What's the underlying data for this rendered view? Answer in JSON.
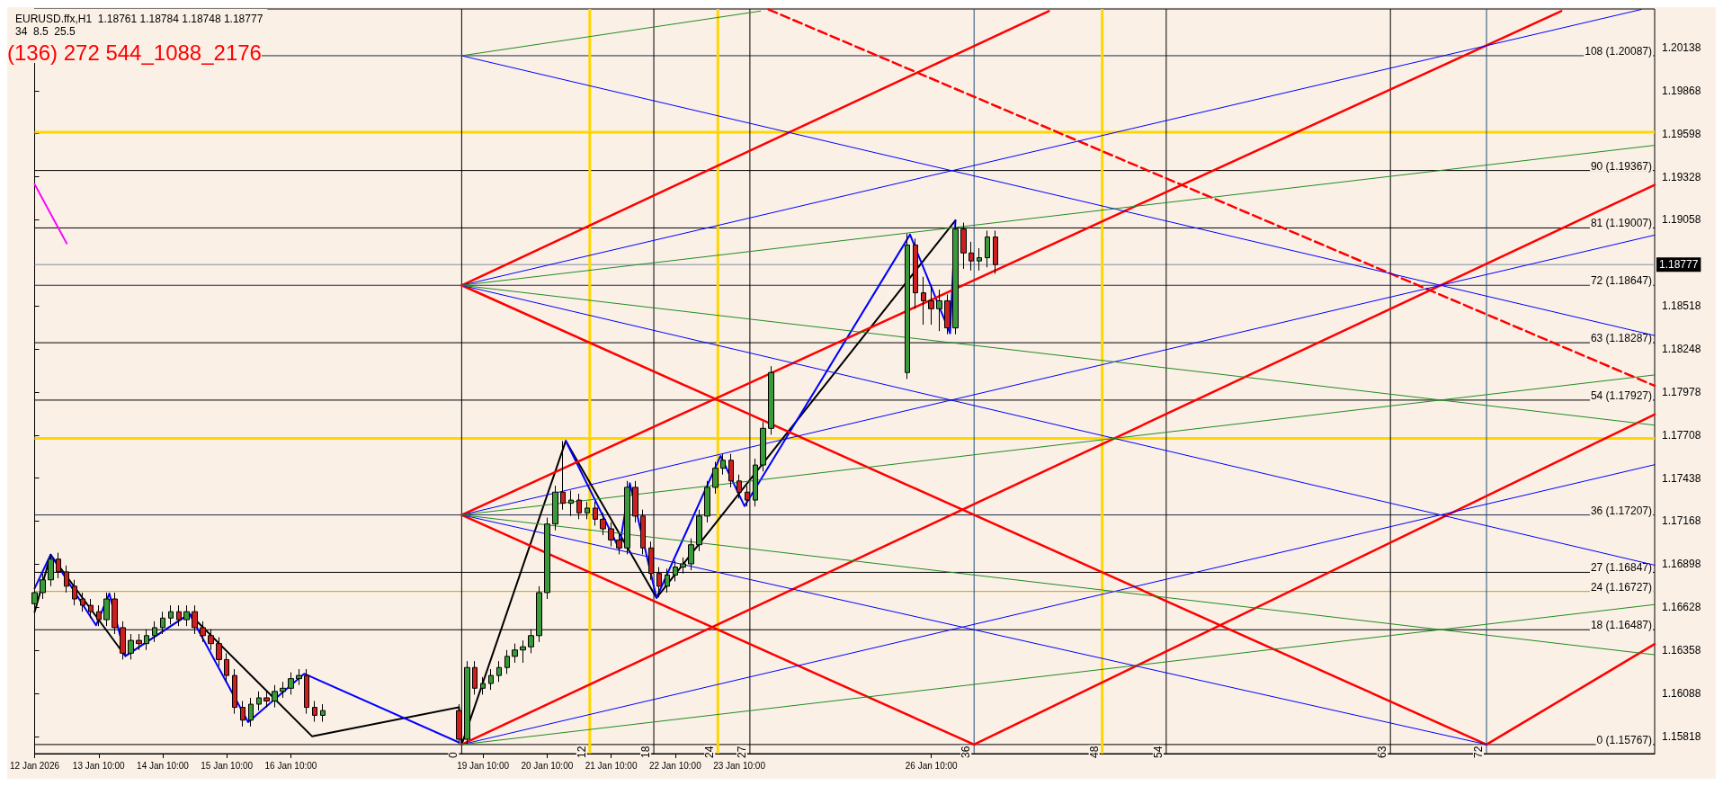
{
  "chart_data": {
    "type": "candlestick",
    "title": "EURUSD.ffx,H1  1.18761 1.18784 1.18748 1.18777",
    "subtitle": "34  8.5  25.5",
    "annotations": [
      "(136) 272 544_1088_2176"
    ],
    "x": [
      "2026-01-12T10:00",
      "2026-01-12T13:00",
      "2026-01-12T16:00",
      "2026-01-12T19:00",
      "2026-01-12T22:00",
      "2026-01-13T01:00",
      "2026-01-13T04:00",
      "2026-01-13T07:00",
      "2026-01-13T10:00",
      "2026-01-13T13:00",
      "2026-01-13T16:00",
      "2026-01-13T19:00",
      "2026-01-13T22:00",
      "2026-01-14T01:00",
      "2026-01-14T04:00",
      "2026-01-14T07:00",
      "2026-01-14T10:00",
      "2026-01-14T13:00",
      "2026-01-14T16:00",
      "2026-01-14T19:00",
      "2026-01-14T22:00",
      "2026-01-15T01:00",
      "2026-01-15T04:00",
      "2026-01-15T07:00",
      "2026-01-15T10:00",
      "2026-01-15T13:00",
      "2026-01-15T16:00",
      "2026-01-15T19:00",
      "2026-01-15T22:00",
      "2026-01-16T01:00",
      "2026-01-16T04:00",
      "2026-01-16T07:00",
      "2026-01-16T10:00",
      "2026-01-16T13:00",
      "2026-01-16T16:00",
      "2026-01-16T19:00",
      "2026-01-16T22:00",
      "2026-01-19T01:00",
      "2026-01-19T04:00",
      "2026-01-19T07:00",
      "2026-01-19T10:00",
      "2026-01-19T13:00",
      "2026-01-19T16:00",
      "2026-01-19T19:00",
      "2026-01-19T22:00",
      "2026-01-20T01:00",
      "2026-01-20T04:00",
      "2026-01-20T07:00",
      "2026-01-20T10:00",
      "2026-01-20T13:00",
      "2026-01-20T16:00",
      "2026-01-20T19:00",
      "2026-01-20T22:00",
      "2026-01-21T01:00",
      "2026-01-21T04:00",
      "2026-01-21T07:00",
      "2026-01-21T10:00",
      "2026-01-21T13:00",
      "2026-01-21T16:00",
      "2026-01-21T19:00",
      "2026-01-21T22:00",
      "2026-01-22T01:00",
      "2026-01-22T04:00",
      "2026-01-22T07:00",
      "2026-01-22T10:00",
      "2026-01-22T13:00",
      "2026-01-22T16:00",
      "2026-01-22T19:00",
      "2026-01-22T22:00",
      "2026-01-23T01:00",
      "2026-01-23T04:00",
      "2026-01-23T07:00",
      "2026-01-23T10:00",
      "2026-01-23T13:00",
      "2026-01-23T16:00",
      "2026-01-23T19:00",
      "2026-01-23T22:00",
      "2026-01-26T01:00",
      "2026-01-26T04:00",
      "2026-01-26T07:00",
      "2026-01-26T10:00",
      "2026-01-26T13:00",
      "2026-01-26T16:00",
      "2026-01-26T19:00",
      "2026-01-26T22:00",
      "2026-01-27T01:00",
      "2026-01-27T04:00",
      "2026-01-27T07:00",
      "2026-01-27T10:00"
    ],
    "ohlc": [
      [
        1.1665,
        1.1676,
        1.1661,
        1.1672
      ],
      [
        1.1672,
        1.1684,
        1.1668,
        1.168
      ],
      [
        1.168,
        1.1696,
        1.1676,
        1.1693
      ],
      [
        1.1693,
        1.1697,
        1.1681,
        1.1685
      ],
      [
        1.1685,
        1.1689,
        1.1672,
        1.1676
      ],
      [
        1.1676,
        1.168,
        1.1664,
        1.1668
      ],
      [
        1.1668,
        1.1672,
        1.166,
        1.1664
      ],
      [
        1.1664,
        1.1668,
        1.1656,
        1.166
      ],
      [
        1.166,
        1.1664,
        1.1651,
        1.1655
      ],
      [
        1.1655,
        1.1672,
        1.1651,
        1.1668
      ],
      [
        1.1668,
        1.1672,
        1.1646,
        1.165
      ],
      [
        1.165,
        1.1654,
        1.163,
        1.1634
      ],
      [
        1.1634,
        1.1646,
        1.163,
        1.1642
      ],
      [
        1.1642,
        1.1646,
        1.1636,
        1.164
      ],
      [
        1.164,
        1.1649,
        1.1636,
        1.1645
      ],
      [
        1.1645,
        1.1654,
        1.1641,
        1.165
      ],
      [
        1.165,
        1.166,
        1.1646,
        1.1656
      ],
      [
        1.1656,
        1.1664,
        1.1652,
        1.166
      ],
      [
        1.166,
        1.1664,
        1.1651,
        1.1655
      ],
      [
        1.1655,
        1.1664,
        1.1651,
        1.166
      ],
      [
        1.166,
        1.1664,
        1.1646,
        1.165
      ],
      [
        1.165,
        1.1654,
        1.1641,
        1.1645
      ],
      [
        1.1645,
        1.1649,
        1.1636,
        1.164
      ],
      [
        1.164,
        1.1644,
        1.1626,
        1.163
      ],
      [
        1.163,
        1.1634,
        1.1616,
        1.162
      ],
      [
        1.162,
        1.1624,
        1.1596,
        1.16
      ],
      [
        1.16,
        1.1604,
        1.1588,
        1.1592
      ],
      [
        1.1592,
        1.1606,
        1.1588,
        1.1602
      ],
      [
        1.1602,
        1.161,
        1.1598,
        1.1606
      ],
      [
        1.1606,
        1.161,
        1.16,
        1.1604
      ],
      [
        1.1604,
        1.1614,
        1.16,
        1.161
      ],
      [
        1.161,
        1.1616,
        1.1606,
        1.1612
      ],
      [
        1.1612,
        1.1622,
        1.1608,
        1.1618
      ],
      [
        1.1618,
        1.1624,
        1.1614,
        1.162
      ],
      [
        1.162,
        1.1624,
        1.1596,
        1.16
      ],
      [
        1.16,
        1.1604,
        1.1591,
        1.1595
      ],
      [
        1.1595,
        1.1602,
        1.1591,
        1.1598
      ],
      [
        1.1598,
        1.1602,
        1.1577,
        1.158
      ],
      [
        1.158,
        1.1629,
        1.1577,
        1.1625
      ],
      [
        1.1625,
        1.1629,
        1.1608,
        1.1612
      ],
      [
        1.1612,
        1.1619,
        1.1608,
        1.1615
      ],
      [
        1.1615,
        1.1624,
        1.1611,
        1.162
      ],
      [
        1.162,
        1.1629,
        1.1616,
        1.1625
      ],
      [
        1.1625,
        1.1636,
        1.1621,
        1.1632
      ],
      [
        1.1632,
        1.164,
        1.1628,
        1.1636
      ],
      [
        1.1636,
        1.1642,
        1.1628,
        1.1638
      ],
      [
        1.1638,
        1.1649,
        1.1634,
        1.1645
      ],
      [
        1.1645,
        1.1676,
        1.1641,
        1.1672
      ],
      [
        1.1672,
        1.1719,
        1.1668,
        1.1715
      ],
      [
        1.1715,
        1.1739,
        1.1711,
        1.1735
      ],
      [
        1.1735,
        1.1767,
        1.1724,
        1.1728
      ],
      [
        1.1728,
        1.1736,
        1.172,
        1.173
      ],
      [
        1.173,
        1.1734,
        1.1718,
        1.1722
      ],
      [
        1.1722,
        1.1729,
        1.1718,
        1.1725
      ],
      [
        1.1725,
        1.1729,
        1.1714,
        1.1718
      ],
      [
        1.1718,
        1.1722,
        1.1708,
        1.1712
      ],
      [
        1.1712,
        1.1716,
        1.1701,
        1.1705
      ],
      [
        1.1705,
        1.1709,
        1.1696,
        1.17
      ],
      [
        1.17,
        1.1742,
        1.1696,
        1.1738
      ],
      [
        1.1738,
        1.1742,
        1.1716,
        1.172
      ],
      [
        1.172,
        1.1724,
        1.1696,
        1.17
      ],
      [
        1.17,
        1.1704,
        1.168,
        1.1684
      ],
      [
        1.1684,
        1.1688,
        1.1669,
        1.1676
      ],
      [
        1.1676,
        1.1687,
        1.1672,
        1.1683
      ],
      [
        1.1683,
        1.1692,
        1.1679,
        1.1688
      ],
      [
        1.1688,
        1.1694,
        1.1684,
        1.169
      ],
      [
        1.169,
        1.1706,
        1.1686,
        1.1702
      ],
      [
        1.1702,
        1.1724,
        1.1698,
        1.172
      ],
      [
        1.172,
        1.1742,
        1.1716,
        1.1738
      ],
      [
        1.1738,
        1.1754,
        1.1734,
        1.175
      ],
      [
        1.175,
        1.1759,
        1.1746,
        1.1755
      ],
      [
        1.1755,
        1.1759,
        1.1738,
        1.1742
      ],
      [
        1.1742,
        1.1746,
        1.1731,
        1.1735
      ],
      [
        1.1735,
        1.1739,
        1.1726,
        1.173
      ],
      [
        1.173,
        1.1756,
        1.1726,
        1.1752
      ],
      [
        1.1752,
        1.1779,
        1.1748,
        1.1775
      ],
      [
        1.1775,
        1.1814,
        1.1771,
        1.181
      ],
      [
        1.181,
        1.1897,
        1.1806,
        1.189
      ],
      [
        1.189,
        1.1894,
        1.185,
        1.186
      ],
      [
        1.186,
        1.187,
        1.184,
        1.1855
      ],
      [
        1.1855,
        1.1865,
        1.184,
        1.185
      ],
      [
        1.185,
        1.1862,
        1.1836,
        1.1855
      ],
      [
        1.1855,
        1.1859,
        1.1834,
        1.1838
      ],
      [
        1.1838,
        1.1905,
        1.1834,
        1.19
      ],
      [
        1.19,
        1.1904,
        1.1875,
        1.1885
      ],
      [
        1.1885,
        1.1892,
        1.1874,
        1.188
      ],
      [
        1.188,
        1.1888,
        1.1874,
        1.1882
      ],
      [
        1.1882,
        1.1899,
        1.1876,
        1.1895
      ],
      [
        1.1895,
        1.1899,
        1.1872,
        1.18777
      ]
    ],
    "series": [
      {
        "type": "line",
        "color": "#ff00ff",
        "x": [
          "2026-01-12T10:00",
          "2026-01-12T22:00"
        ],
        "values": [
          1.19281,
          1.1891
        ]
      },
      {
        "type": "line",
        "color": "#000000",
        "x": [
          "2026-01-12T10:00",
          "2026-01-12T16:00",
          "2026-01-13T20:00",
          "2026-01-14T20:00",
          "2026-01-16T18:00",
          "2026-01-19T01:00",
          "2026-01-19T02:00",
          "2026-01-20T17:00",
          "2026-01-22T03:00",
          "2026-01-26T19:00"
        ],
        "values": [
          1.16598,
          1.16958,
          1.16322,
          1.16587,
          1.15818,
          1.16001,
          1.15767,
          1.17671,
          1.16687,
          1.19054
        ]
      },
      {
        "type": "line",
        "color": "#0000ff",
        "x": [
          "2026-01-12T10:00",
          "2026-01-12T16:00",
          "2026-01-13T09:00",
          "2026-01-13T14:00",
          "2026-01-13T20:00",
          "2026-01-14T20:00",
          "2026-01-15T18:00",
          "2026-01-16T15:00",
          "2026-01-19T01:00",
          "2026-01-19T20:00",
          "2026-01-20T17:00",
          "2026-01-21T13:00",
          "2026-01-21T17:00",
          "2026-01-22T03:00",
          "2026-01-23T03:00",
          "2026-01-23T12:00",
          "2026-01-26T02:00",
          "2026-01-26T17:00",
          "2026-01-26T19:00"
        ],
        "values": [
          1.16747,
          1.16958,
          1.16515,
          1.16714,
          1.16322,
          1.16587,
          1.15907,
          1.16211,
          1.1578,
          null,
          1.17671,
          1.16996,
          1.17406,
          1.16687,
          1.17577,
          1.17262,
          1.18965,
          1.18346,
          1.19054
        ]
      },
      {
        "type": "line",
        "color": "#ff0000",
        "x": [
          "2026-01-19T02:00",
          "2026-01-28T06:00"
        ],
        "values": [
          1.18647,
          1.20367
        ]
      },
      {
        "type": "line",
        "color": "#ff0000",
        "x": [
          "2026-01-19T02:00",
          "2026-02-04T02:00"
        ],
        "values": [
          1.18647,
          1.15767
        ]
      },
      {
        "type": "line",
        "color": "#ff0000",
        "x": [
          "2026-01-19T02:00",
          "2026-02-05T06:00"
        ],
        "values": [
          1.17207,
          1.20367
        ]
      },
      {
        "type": "line",
        "color": "#ff0000",
        "x": [
          "2026-01-19T02:00",
          "2026-01-27T02:00"
        ],
        "values": [
          1.17207,
          1.15767
        ]
      },
      {
        "type": "line",
        "color": "#ff0000",
        "x": [
          "2026-01-19T02:00",
          "2026-02-06T17:00"
        ],
        "values": [
          1.15767,
          1.19277
        ]
      },
      {
        "type": "line",
        "color": "#ff0000",
        "x": [
          "2026-01-27T02:00",
          "2026-02-06T17:00"
        ],
        "values": [
          1.15767,
          1.17837
        ]
      },
      {
        "type": "line",
        "color": "#ff0000",
        "x": [
          "2026-02-04T02:00",
          "2026-02-06T17:00"
        ],
        "values": [
          1.15767,
          1.16397
        ]
      },
      {
        "type": "line",
        "color": "#ff0000",
        "line_style": "dashed",
        "x": [
          "2026-01-23T21:00",
          "2026-02-06T17:00"
        ],
        "values": [
          1.20377,
          1.18017
        ]
      },
      {
        "type": "line",
        "color": "#0000ff",
        "x": [
          "2026-01-19T02:00",
          "2026-02-06T17:00"
        ],
        "values": [
          1.20087,
          1.18332
        ]
      },
      {
        "type": "line",
        "color": "#0000ff",
        "x": [
          "2026-01-19T02:00",
          "2026-02-06T12:00"
        ],
        "values": [
          1.18647,
          1.20377
        ]
      },
      {
        "type": "line",
        "color": "#0000ff",
        "x": [
          "2026-01-19T02:00",
          "2026-02-06T17:00"
        ],
        "values": [
          1.18647,
          1.16892
        ]
      },
      {
        "type": "line",
        "color": "#0000ff",
        "x": [
          "2026-01-19T02:00",
          "2026-02-06T17:00"
        ],
        "values": [
          1.17207,
          1.18962
        ]
      },
      {
        "type": "line",
        "color": "#0000ff",
        "x": [
          "2026-01-19T02:00",
          "2026-02-04T02:00"
        ],
        "values": [
          1.17207,
          1.15767
        ]
      },
      {
        "type": "line",
        "color": "#0000ff",
        "x": [
          "2026-01-19T02:00",
          "2026-02-06T17:00"
        ],
        "values": [
          1.15767,
          1.17522
        ]
      },
      {
        "type": "line",
        "color": "#228b22",
        "x": [
          "2026-01-19T02:00",
          "2026-01-23T18:00"
        ],
        "values": [
          1.20087,
          1.20367
        ]
      },
      {
        "type": "line",
        "color": "#228b22",
        "x": [
          "2026-01-19T02:00",
          "2026-02-06T17:00"
        ],
        "values": [
          1.18647,
          1.19525
        ]
      },
      {
        "type": "line",
        "color": "#228b22",
        "x": [
          "2026-01-19T02:00",
          "2026-02-06T17:00"
        ],
        "values": [
          1.18647,
          1.1777
        ]
      },
      {
        "type": "line",
        "color": "#228b22",
        "x": [
          "2026-01-19T02:00",
          "2026-02-06T17:00"
        ],
        "values": [
          1.17207,
          1.18085
        ]
      },
      {
        "type": "line",
        "color": "#228b22",
        "x": [
          "2026-01-19T02:00",
          "2026-02-06T17:00"
        ],
        "values": [
          1.17207,
          1.1633
        ]
      },
      {
        "type": "line",
        "color": "#228b22",
        "x": [
          "2026-01-19T02:00",
          "2026-02-06T17:00"
        ],
        "values": [
          1.15767,
          1.16645
        ]
      }
    ],
    "xlim": [
      "2026-01-12T10:00",
      "2026-02-06T17:00"
    ],
    "xticks": [
      {
        "value": "2026-01-12T10:00",
        "label": "12 Jan 2026"
      },
      {
        "value": "2026-01-13T10:00",
        "label": "13 Jan 10:00"
      },
      {
        "value": "2026-01-14T10:00",
        "label": "14 Jan 10:00"
      },
      {
        "value": "2026-01-15T10:00",
        "label": "15 Jan 10:00"
      },
      {
        "value": "2026-01-16T10:00",
        "label": "16 Jan 10:00"
      },
      {
        "value": "2026-01-19T10:00",
        "label": "19 Jan 10:00"
      },
      {
        "value": "2026-01-20T10:00",
        "label": "20 Jan 10:00"
      },
      {
        "value": "2026-01-21T10:00",
        "label": "21 Jan 10:00"
      },
      {
        "value": "2026-01-22T10:00",
        "label": "22 Jan 10:00"
      },
      {
        "value": "2026-01-23T10:00",
        "label": "23 Jan 10:00"
      },
      {
        "value": "2026-01-26T10:00",
        "label": "26 Jan 10:00"
      }
    ],
    "ylim": [
      1.1571,
      1.2038
    ],
    "yticks": [
      1.15818,
      1.16088,
      1.16358,
      1.16628,
      1.16898,
      1.17168,
      1.17438,
      1.17708,
      1.17978,
      1.18248,
      1.18518,
      1.19058,
      1.19328,
      1.19598,
      1.19868,
      1.20138
    ],
    "ref_lines": [
      {
        "axis": "y",
        "value": 1.20087,
        "label": "108 (1.20087)",
        "color": "#1c2b4a"
      },
      {
        "axis": "y",
        "value": 1.19607,
        "color": "#ffd700"
      },
      {
        "axis": "y",
        "value": 1.19367,
        "label": "90 (1.19367)",
        "color": "#000000"
      },
      {
        "axis": "y",
        "value": 1.19007,
        "label": "81 (1.19007)",
        "color": "#000000"
      },
      {
        "axis": "y",
        "value": 1.18777,
        "label": "1.18777",
        "color": "#8090a0"
      },
      {
        "axis": "y",
        "value": 1.18647,
        "label": "72 (1.18647)",
        "color": "#1c2b4a"
      },
      {
        "axis": "y",
        "value": 1.18287,
        "label": "63 (1.18287)",
        "color": "#000000"
      },
      {
        "axis": "y",
        "value": 1.17927,
        "label": "54 (1.17927)",
        "color": "#000000"
      },
      {
        "axis": "y",
        "value": 1.17687,
        "color": "#ffd700"
      },
      {
        "axis": "y",
        "value": 1.17207,
        "label": "36 (1.17207)",
        "color": "#1c2b4a"
      },
      {
        "axis": "y",
        "value": 1.16847,
        "label": "27 (1.16847)",
        "color": "#000000"
      },
      {
        "axis": "y",
        "value": 1.16727,
        "label": "24 (1.16727)",
        "color": "#c8a000"
      },
      {
        "axis": "y",
        "value": 1.16487,
        "label": "18 (1.16487)",
        "color": "#000000"
      },
      {
        "axis": "y",
        "value": 1.15767,
        "label": "0 (1.15767)",
        "color": "#000000"
      },
      {
        "axis": "x",
        "value": "2026-01-19T02:00",
        "label": "0",
        "color": "#000000"
      },
      {
        "axis": "x",
        "value": "2026-01-21T02:00",
        "label": "12",
        "color": "#ffd700"
      },
      {
        "axis": "x",
        "value": "2026-01-22T02:00",
        "label": "18",
        "color": "#000000"
      },
      {
        "axis": "x",
        "value": "2026-01-23T02:00",
        "label": "24",
        "color": "#ffd700"
      },
      {
        "axis": "x",
        "value": "2026-01-23T14:00",
        "label": "27",
        "color": "#000000"
      },
      {
        "axis": "x",
        "value": "2026-01-27T02:00",
        "label": "36",
        "color": "#1f4e79"
      },
      {
        "axis": "x",
        "value": "2026-01-29T02:00",
        "label": "48",
        "color": "#ffd700"
      },
      {
        "axis": "x",
        "value": "2026-01-30T02:00",
        "label": "54",
        "color": "#000000"
      },
      {
        "axis": "x",
        "value": "2026-02-02T14:00",
        "label": "63",
        "color": "#000000"
      },
      {
        "axis": "x",
        "value": "2026-02-04T02:00",
        "label": "72",
        "color": "#1f4e79"
      }
    ],
    "marker": "none",
    "grid": false
  }
}
